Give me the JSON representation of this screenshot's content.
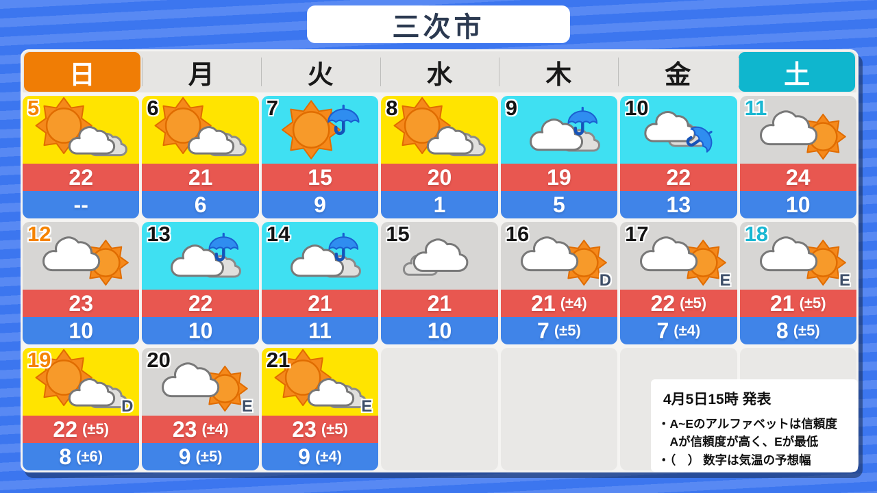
{
  "title": "三次市",
  "weekday_header": [
    {
      "label": "日",
      "type": "sunday"
    },
    {
      "label": "月",
      "type": "weekday"
    },
    {
      "label": "火",
      "type": "weekday"
    },
    {
      "label": "水",
      "type": "weekday"
    },
    {
      "label": "木",
      "type": "weekday"
    },
    {
      "label": "金",
      "type": "weekday"
    },
    {
      "label": "土",
      "type": "saturday"
    }
  ],
  "calendar": {
    "rows": [
      [
        {
          "date": "5",
          "day": "sunday",
          "sky": "sunny",
          "icon": "sun-cloud",
          "high": "22",
          "low": "--"
        },
        {
          "date": "6",
          "day": "weekday",
          "sky": "sunny",
          "icon": "sun-cloud",
          "high": "21",
          "low": "6"
        },
        {
          "date": "7",
          "day": "weekday",
          "sky": "rainy",
          "icon": "sun-umbrella",
          "high": "15",
          "low": "9"
        },
        {
          "date": "8",
          "day": "weekday",
          "sky": "sunny",
          "icon": "sun-cloud",
          "high": "20",
          "low": "1"
        },
        {
          "date": "9",
          "day": "weekday",
          "sky": "rainy",
          "icon": "cloud-umbrella",
          "high": "19",
          "low": "5"
        },
        {
          "date": "10",
          "day": "weekday",
          "sky": "rainy",
          "icon": "cloud-umbrella-tilt",
          "high": "22",
          "low": "13"
        },
        {
          "date": "11",
          "day": "saturday",
          "sky": "cloudy",
          "icon": "cloud-sun",
          "high": "24",
          "low": "10"
        }
      ],
      [
        {
          "date": "12",
          "day": "sunday",
          "sky": "cloudy",
          "icon": "cloud-sun",
          "high": "23",
          "low": "10"
        },
        {
          "date": "13",
          "day": "weekday",
          "sky": "rainy",
          "icon": "cloud-umbrella",
          "high": "22",
          "low": "10"
        },
        {
          "date": "14",
          "day": "weekday",
          "sky": "rainy",
          "icon": "cloud-umbrella",
          "high": "21",
          "low": "11"
        },
        {
          "date": "15",
          "day": "weekday",
          "sky": "cloudy",
          "icon": "cloud",
          "high": "21",
          "low": "10"
        },
        {
          "date": "16",
          "day": "weekday",
          "sky": "cloudy",
          "icon": "cloud-sun",
          "reliability": "D",
          "high": "21",
          "high_range": "(±4)",
          "low": "7",
          "low_range": "(±5)"
        },
        {
          "date": "17",
          "day": "weekday",
          "sky": "cloudy",
          "icon": "cloud-sun",
          "reliability": "E",
          "high": "22",
          "high_range": "(±5)",
          "low": "7",
          "low_range": "(±4)"
        },
        {
          "date": "18",
          "day": "saturday",
          "sky": "cloudy",
          "icon": "cloud-sun",
          "reliability": "E",
          "high": "21",
          "high_range": "(±5)",
          "low": "8",
          "low_range": "(±5)"
        }
      ],
      [
        {
          "date": "19",
          "day": "sunday",
          "sky": "sunny",
          "icon": "sun-cloud",
          "reliability": "D",
          "high": "22",
          "high_range": "(±5)",
          "low": "8",
          "low_range": "(±6)"
        },
        {
          "date": "20",
          "day": "weekday",
          "sky": "cloudy",
          "icon": "cloud-sun",
          "reliability": "E",
          "high": "23",
          "high_range": "(±4)",
          "low": "9",
          "low_range": "(±5)"
        },
        {
          "date": "21",
          "day": "weekday",
          "sky": "sunny",
          "icon": "sun-cloud",
          "reliability": "E",
          "high": "23",
          "high_range": "(±5)",
          "low": "9",
          "low_range": "(±4)"
        },
        {
          "empty": true
        },
        {
          "empty": true
        },
        {
          "empty": true
        },
        {
          "empty": true
        }
      ]
    ]
  },
  "note": {
    "heading": "4月5日15時 発表",
    "lines": [
      "・A~Eのアルファベットは信頼度",
      "　Aが信頼度が高く、Eが最低",
      "・（　） 数字は気温の予想幅"
    ]
  },
  "colors": {
    "background_blue_dark": "#3c76ef",
    "background_blue_light": "#5889f3",
    "sunny_cell": "#ffe400",
    "rainy_cell": "#3fe0f2",
    "cloudy_cell": "#d7d6d4",
    "high_band": "#e85750",
    "low_band": "#4084e8",
    "sunday_accent": "#f07d05",
    "saturday_accent": "#0fb6ce",
    "sunday_date": "#f58300",
    "saturday_date": "#1ab7d2",
    "reliability_letter": "#3d4e68",
    "title_text": "#2b3950"
  }
}
